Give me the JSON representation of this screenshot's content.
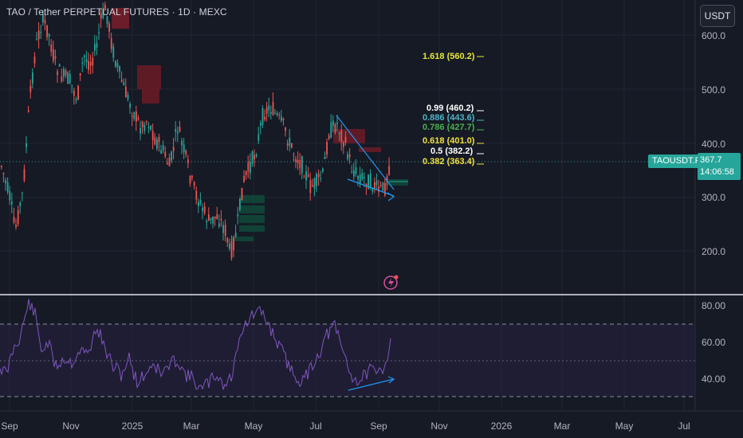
{
  "header": {
    "title": "TAO / Tether PERPETUAL FUTURES · 1D · MEXC",
    "currency_button": "USDT"
  },
  "price_axis": {
    "ticks": [
      "600.0",
      "500.0",
      "400.0",
      "300.0",
      "200.0"
    ]
  },
  "rsi_axis": {
    "ticks": [
      "80.00",
      "60.00",
      "40.00"
    ]
  },
  "time_axis": {
    "ticks": [
      "Sep",
      "Nov",
      "2025",
      "Mar",
      "May",
      "Jul",
      "Sep",
      "Nov",
      "2026",
      "Mar",
      "May",
      "Jul"
    ]
  },
  "fib_levels": [
    {
      "label": "1.618 (560.2)",
      "color": "#e6e635"
    },
    {
      "label": "0.99 (460.2)",
      "color": "#ffffff"
    },
    {
      "label": "0.886 (443.6)",
      "color": "#4fb3c4"
    },
    {
      "label": "0.786 (427.7)",
      "color": "#4caf50"
    },
    {
      "label": "0.618 (401.0)",
      "color": "#f0e040"
    },
    {
      "label": "0.5 (382.2)",
      "color": "#ffffff"
    },
    {
      "label": "0.382 (363.4)",
      "color": "#f0e040"
    }
  ],
  "price_tag": {
    "symbol": "TAOUSDT.P",
    "price": "367.7",
    "countdown": "14:06:58"
  },
  "colors": {
    "up": "#26a69a",
    "down": "#ef5350",
    "rsi": "#7e57c2",
    "trend": "#2196f3"
  },
  "icons": {
    "alert": "lightning-icon"
  }
}
